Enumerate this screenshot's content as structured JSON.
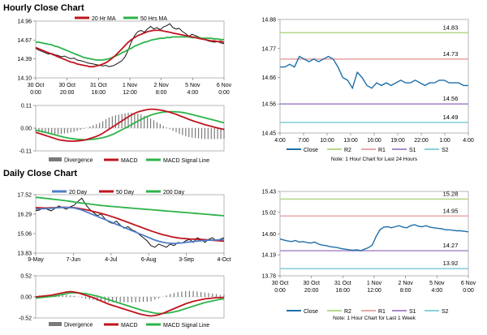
{
  "colors": {
    "ma20": "#c0141e",
    "ma50": "#2db34a",
    "price": "#111111",
    "divergence": "#7a7a7a",
    "macd": "#c0141e",
    "macd_signal": "#2db34a",
    "close": "#1f6fa8",
    "r2": "#b7d88a",
    "r1": "#e8a8a8",
    "s1": "#a88cc8",
    "s2": "#8ccfd8",
    "day20": "#4f7fc8",
    "day50": "#c0141e",
    "day200": "#2db34a"
  },
  "hourly": {
    "title": "Hourly Close Chart",
    "price_chart": {
      "type": "line",
      "legend": [
        "20 Hr MA",
        "50 Hrs MA"
      ],
      "yticks": [
        "14.96",
        "14.67",
        "14.39",
        "14.10"
      ],
      "ylim": [
        14.1,
        14.96
      ],
      "xticks": [
        [
          "30 Oct",
          "0:00"
        ],
        [
          "30 Oct",
          "20:00"
        ],
        [
          "31 Oct",
          "16:00"
        ],
        [
          "1 Nov",
          "12:00"
        ],
        [
          "2 Nov",
          "8:00"
        ],
        [
          "5 Nov",
          "4:00"
        ],
        [
          "6 Nov",
          "0:00"
        ]
      ],
      "price": [
        14.55,
        14.52,
        14.5,
        14.48,
        14.46,
        14.47,
        14.45,
        14.44,
        14.42,
        14.43,
        14.41,
        14.39,
        14.4,
        14.37,
        14.36,
        14.35,
        14.33,
        14.32,
        14.31,
        14.3,
        14.29,
        14.28,
        14.29,
        14.27,
        14.28,
        14.3,
        14.33,
        14.36,
        14.42,
        14.52,
        14.65,
        14.74,
        14.8,
        14.82,
        14.79,
        14.84,
        14.88,
        14.84,
        14.86,
        14.83,
        14.87,
        14.89,
        14.92,
        14.86,
        14.84,
        14.85,
        14.8,
        14.77,
        14.73,
        14.76,
        14.74,
        14.72,
        14.7,
        14.68,
        14.66,
        14.65,
        14.64,
        14.65,
        14.63,
        14.62
      ],
      "ma20": [
        14.56,
        14.54,
        14.52,
        14.5,
        14.48,
        14.46,
        14.44,
        14.42,
        14.4,
        14.38,
        14.36,
        14.34,
        14.33,
        14.31,
        14.3,
        14.29,
        14.28,
        14.27,
        14.27,
        14.28,
        14.29,
        14.31,
        14.33,
        14.36,
        14.4,
        14.44,
        14.49,
        14.54,
        14.59,
        14.64,
        14.68,
        14.71,
        14.74,
        14.76,
        14.78,
        14.8,
        14.81,
        14.82,
        14.82,
        14.82,
        14.81,
        14.8,
        14.79,
        14.78,
        14.77,
        14.76,
        14.75,
        14.74,
        14.73,
        14.72,
        14.71,
        14.7,
        14.69,
        14.68,
        14.67,
        14.66,
        14.66,
        14.65,
        14.65,
        14.64
      ],
      "ma50": [
        14.64,
        14.64,
        14.63,
        14.62,
        14.61,
        14.6,
        14.58,
        14.57,
        14.55,
        14.53,
        14.51,
        14.49,
        14.47,
        14.45,
        14.43,
        14.41,
        14.4,
        14.39,
        14.38,
        14.37,
        14.37,
        14.37,
        14.38,
        14.39,
        14.41,
        14.43,
        14.45,
        14.48,
        14.5,
        14.53,
        14.55,
        14.58,
        14.6,
        14.62,
        14.64,
        14.65,
        14.67,
        14.68,
        14.69,
        14.7,
        14.7,
        14.71,
        14.71,
        14.72,
        14.72,
        14.72,
        14.72,
        14.72,
        14.72,
        14.71,
        14.71,
        14.71,
        14.7,
        14.7,
        14.7,
        14.7,
        14.69,
        14.69,
        14.68,
        14.68
      ]
    },
    "macd_chart": {
      "type": "bar",
      "yticks": [
        "0.11",
        "0.00",
        "-0.11"
      ],
      "ylim": [
        -0.11,
        0.11
      ],
      "legend": [
        "Divergence",
        "MACD",
        "MACD Signal Line"
      ],
      "macd": [
        -0.02,
        -0.025,
        -0.03,
        -0.035,
        -0.04,
        -0.045,
        -0.05,
        -0.055,
        -0.058,
        -0.06,
        -0.062,
        -0.063,
        -0.063,
        -0.062,
        -0.06,
        -0.058,
        -0.055,
        -0.05,
        -0.045,
        -0.04,
        -0.033,
        -0.025,
        -0.015,
        -0.005,
        0.005,
        0.015,
        0.025,
        0.035,
        0.045,
        0.055,
        0.064,
        0.072,
        0.078,
        0.083,
        0.087,
        0.09,
        0.092,
        0.092,
        0.09,
        0.088,
        0.085,
        0.081,
        0.077,
        0.072,
        0.067,
        0.061,
        0.055,
        0.049,
        0.043,
        0.037,
        0.032,
        0.027,
        0.022,
        0.017,
        0.013,
        0.009,
        0.005,
        0.001,
        -0.003,
        -0.006
      ],
      "signal": [
        -0.01,
        -0.013,
        -0.016,
        -0.02,
        -0.024,
        -0.028,
        -0.032,
        -0.036,
        -0.04,
        -0.044,
        -0.047,
        -0.05,
        -0.052,
        -0.054,
        -0.055,
        -0.056,
        -0.056,
        -0.055,
        -0.054,
        -0.052,
        -0.049,
        -0.046,
        -0.042,
        -0.037,
        -0.031,
        -0.024,
        -0.016,
        -0.008,
        0.0,
        0.008,
        0.017,
        0.026,
        0.034,
        0.042,
        0.05,
        0.057,
        0.063,
        0.068,
        0.072,
        0.075,
        0.078,
        0.079,
        0.08,
        0.08,
        0.079,
        0.078,
        0.076,
        0.073,
        0.07,
        0.066,
        0.062,
        0.058,
        0.054,
        0.05,
        0.046,
        0.042,
        0.038,
        0.034,
        0.03,
        0.026
      ],
      "divergence": [
        -0.01,
        -0.012,
        -0.014,
        -0.015,
        -0.016,
        -0.017,
        -0.018,
        -0.019,
        -0.018,
        -0.016,
        -0.015,
        -0.013,
        -0.011,
        -0.008,
        -0.005,
        -0.002,
        0.001,
        0.005,
        0.009,
        0.012,
        0.016,
        0.021,
        0.027,
        0.032,
        0.036,
        0.039,
        0.041,
        0.043,
        0.045,
        0.047,
        0.047,
        0.046,
        0.044,
        0.041,
        0.037,
        0.033,
        0.029,
        0.024,
        0.018,
        0.013,
        0.007,
        0.002,
        -0.003,
        -0.008,
        -0.012,
        -0.017,
        -0.021,
        -0.024,
        -0.027,
        -0.029,
        -0.03,
        -0.031,
        -0.032,
        -0.033,
        -0.033,
        -0.033,
        -0.033,
        -0.033,
        -0.033,
        -0.032
      ]
    },
    "pivot_chart": {
      "type": "line",
      "yticks": [
        "14.88",
        "14.77",
        "14.66",
        "14.56",
        "14.45"
      ],
      "ylim": [
        14.45,
        14.88
      ],
      "xticks": [
        "4:00",
        "7:00",
        "10:00",
        "13:00",
        "16:00",
        "19:00",
        "22:00",
        "1:00",
        "4:00"
      ],
      "levels": {
        "R2": 14.83,
        "R1": 14.73,
        "S1": 14.56,
        "S2": 14.49
      },
      "level_labels": {
        "R2": "14.83",
        "R1": "14.73",
        "S1": "14.56",
        "S2": "14.49"
      },
      "close": [
        14.7,
        14.7,
        14.71,
        14.7,
        14.74,
        14.73,
        14.72,
        14.73,
        14.72,
        14.73,
        14.74,
        14.73,
        14.7,
        14.66,
        14.65,
        14.62,
        14.68,
        14.66,
        14.63,
        14.62,
        14.64,
        14.63,
        14.64,
        14.63,
        14.64,
        14.65,
        14.64,
        14.64,
        14.65,
        14.64,
        14.63,
        14.64,
        14.64,
        14.65,
        14.65,
        14.64,
        14.64,
        14.64,
        14.63,
        14.63
      ],
      "legend": [
        "Close",
        "R2",
        "R1",
        "S1",
        "S2"
      ],
      "note": "Note: 1 Hour Chart for Last 24 Hours"
    }
  },
  "daily": {
    "title": "Daily Close Chart",
    "price_chart": {
      "type": "line",
      "legend": [
        "20 Day",
        "50 Day",
        "200 Day"
      ],
      "yticks": [
        "17.52",
        "16.29",
        "15.06",
        "13.83"
      ],
      "ylim": [
        13.83,
        17.52
      ],
      "xticks": [
        "9-May",
        "7-Jun",
        "4-Jul",
        "6-Aug",
        "3-Sep",
        "4-Oct"
      ],
      "price": [
        16.5,
        16.55,
        16.7,
        16.6,
        16.5,
        16.65,
        16.8,
        16.7,
        16.6,
        16.75,
        16.85,
        17.1,
        17.3,
        16.9,
        16.6,
        16.4,
        16.2,
        16.3,
        16.0,
        15.8,
        15.7,
        15.85,
        15.6,
        15.4,
        15.5,
        15.3,
        15.2,
        15.0,
        14.8,
        14.6,
        14.3,
        14.2,
        14.4,
        14.3,
        14.2,
        14.4,
        14.3,
        14.5,
        14.45,
        14.6,
        14.7,
        14.5,
        14.8,
        14.7,
        14.5,
        14.7,
        14.8,
        14.6,
        14.7,
        14.8
      ],
      "day20": [
        16.6,
        16.62,
        16.63,
        16.65,
        16.66,
        16.68,
        16.7,
        16.71,
        16.72,
        16.7,
        16.68,
        16.62,
        16.55,
        16.45,
        16.35,
        16.25,
        16.15,
        16.05,
        15.95,
        15.85,
        15.75,
        15.65,
        15.55,
        15.45,
        15.35,
        15.25,
        15.15,
        15.05,
        14.95,
        14.85,
        14.75,
        14.65,
        14.58,
        14.52,
        14.47,
        14.45,
        14.44,
        14.45,
        14.47,
        14.5,
        14.53,
        14.56,
        14.59,
        14.61,
        14.63,
        14.64,
        14.65,
        14.66,
        14.67,
        14.68
      ],
      "day50": [
        16.7,
        16.69,
        16.68,
        16.68,
        16.69,
        16.7,
        16.71,
        16.72,
        16.72,
        16.71,
        16.7,
        16.66,
        16.62,
        16.57,
        16.52,
        16.46,
        16.4,
        16.34,
        16.27,
        16.2,
        16.12,
        16.04,
        15.95,
        15.86,
        15.77,
        15.68,
        15.59,
        15.5,
        15.41,
        15.32,
        15.23,
        15.15,
        15.07,
        15.0,
        14.94,
        14.88,
        14.83,
        14.79,
        14.76,
        14.74,
        14.72,
        14.71,
        14.7,
        14.69,
        14.68,
        14.66,
        14.64,
        14.62,
        14.6,
        14.58
      ],
      "day200": [
        17.35,
        17.33,
        17.3,
        17.28,
        17.25,
        17.22,
        17.19,
        17.16,
        17.13,
        17.1,
        17.06,
        17.02,
        16.99,
        16.96,
        16.93,
        16.9,
        16.87,
        16.84,
        16.82,
        16.79,
        16.77,
        16.75,
        16.73,
        16.71,
        16.69,
        16.67,
        16.65,
        16.63,
        16.61,
        16.59,
        16.57,
        16.55,
        16.53,
        16.51,
        16.49,
        16.47,
        16.45,
        16.43,
        16.41,
        16.39,
        16.37,
        16.35,
        16.33,
        16.31,
        16.29,
        16.27,
        16.25,
        16.23,
        16.21,
        16.19
      ]
    },
    "macd_chart": {
      "type": "bar",
      "yticks": [
        "0.52",
        "0.00",
        "-0.52"
      ],
      "ylim": [
        -0.52,
        0.52
      ],
      "legend": [
        "Divergence",
        "MACD",
        "MACD Signal Line"
      ],
      "macd": [
        0.0,
        0.01,
        0.02,
        0.03,
        0.04,
        0.06,
        0.08,
        0.1,
        0.12,
        0.13,
        0.12,
        0.1,
        0.07,
        0.04,
        0.01,
        -0.02,
        -0.06,
        -0.1,
        -0.14,
        -0.18,
        -0.21,
        -0.24,
        -0.27,
        -0.3,
        -0.33,
        -0.36,
        -0.39,
        -0.42,
        -0.44,
        -0.46,
        -0.47,
        -0.46,
        -0.44,
        -0.41,
        -0.37,
        -0.33,
        -0.29,
        -0.25,
        -0.21,
        -0.17,
        -0.14,
        -0.11,
        -0.09,
        -0.07,
        -0.05,
        -0.04,
        -0.03,
        -0.02,
        -0.02,
        -0.01
      ],
      "signal": [
        -0.03,
        -0.02,
        -0.01,
        0.0,
        0.01,
        0.02,
        0.04,
        0.06,
        0.08,
        0.1,
        0.1,
        0.1,
        0.09,
        0.08,
        0.06,
        0.04,
        0.02,
        -0.01,
        -0.04,
        -0.07,
        -0.1,
        -0.13,
        -0.16,
        -0.19,
        -0.22,
        -0.25,
        -0.28,
        -0.31,
        -0.34,
        -0.36,
        -0.38,
        -0.4,
        -0.41,
        -0.41,
        -0.4,
        -0.39,
        -0.37,
        -0.35,
        -0.32,
        -0.29,
        -0.26,
        -0.23,
        -0.2,
        -0.17,
        -0.14,
        -0.12,
        -0.1,
        -0.08,
        -0.06,
        -0.05
      ],
      "divergence": [
        0.02,
        0.03,
        0.03,
        0.03,
        0.03,
        0.04,
        0.04,
        0.04,
        0.04,
        0.03,
        0.02,
        0.0,
        -0.02,
        -0.04,
        -0.05,
        -0.06,
        -0.08,
        -0.09,
        -0.1,
        -0.11,
        -0.11,
        -0.11,
        -0.11,
        -0.11,
        -0.11,
        -0.11,
        -0.11,
        -0.11,
        -0.1,
        -0.1,
        -0.09,
        -0.06,
        -0.03,
        0.0,
        0.03,
        0.06,
        0.08,
        0.1,
        0.11,
        0.12,
        0.12,
        0.12,
        0.11,
        0.1,
        0.09,
        0.08,
        0.07,
        0.06,
        0.04,
        0.04
      ]
    },
    "pivot_chart": {
      "type": "line",
      "yticks": [
        "15.43",
        "15.02",
        "14.60",
        "14.19",
        "13.78"
      ],
      "ylim": [
        13.78,
        15.43
      ],
      "xticks": [
        [
          "30 Oct",
          "0:00"
        ],
        [
          "30 Oct",
          "20:00"
        ],
        [
          "31 Oct",
          "16:00"
        ],
        [
          "1 Nov",
          "12:00"
        ],
        [
          "2 Nov",
          "8:00"
        ],
        [
          "5 Nov",
          "4:00"
        ],
        [
          "6 Nov",
          "0:00"
        ]
      ],
      "levels": {
        "R2": 15.28,
        "R1": 14.95,
        "S1": 14.27,
        "S2": 13.92
      },
      "level_labels": {
        "R2": "15.28",
        "R1": "14.95",
        "S1": "14.27",
        "S2": "13.92"
      },
      "close": [
        14.5,
        14.48,
        14.46,
        14.45,
        14.47,
        14.44,
        14.45,
        14.43,
        14.42,
        14.44,
        14.4,
        14.38,
        14.37,
        14.35,
        14.34,
        14.33,
        14.31,
        14.3,
        14.29,
        14.28,
        14.29,
        14.27,
        14.3,
        14.33,
        14.38,
        14.55,
        14.68,
        14.73,
        14.74,
        14.72,
        14.74,
        14.76,
        14.73,
        14.72,
        14.76,
        14.78,
        14.75,
        14.74,
        14.76,
        14.73,
        14.72,
        14.71,
        14.7,
        14.68,
        14.68,
        14.67,
        14.66,
        14.66,
        14.65,
        14.64
      ],
      "legend": [
        "Close",
        "R2",
        "R1",
        "S1",
        "S2"
      ],
      "note": "Note: 1 Hour Chart for Last 1 Week"
    }
  }
}
